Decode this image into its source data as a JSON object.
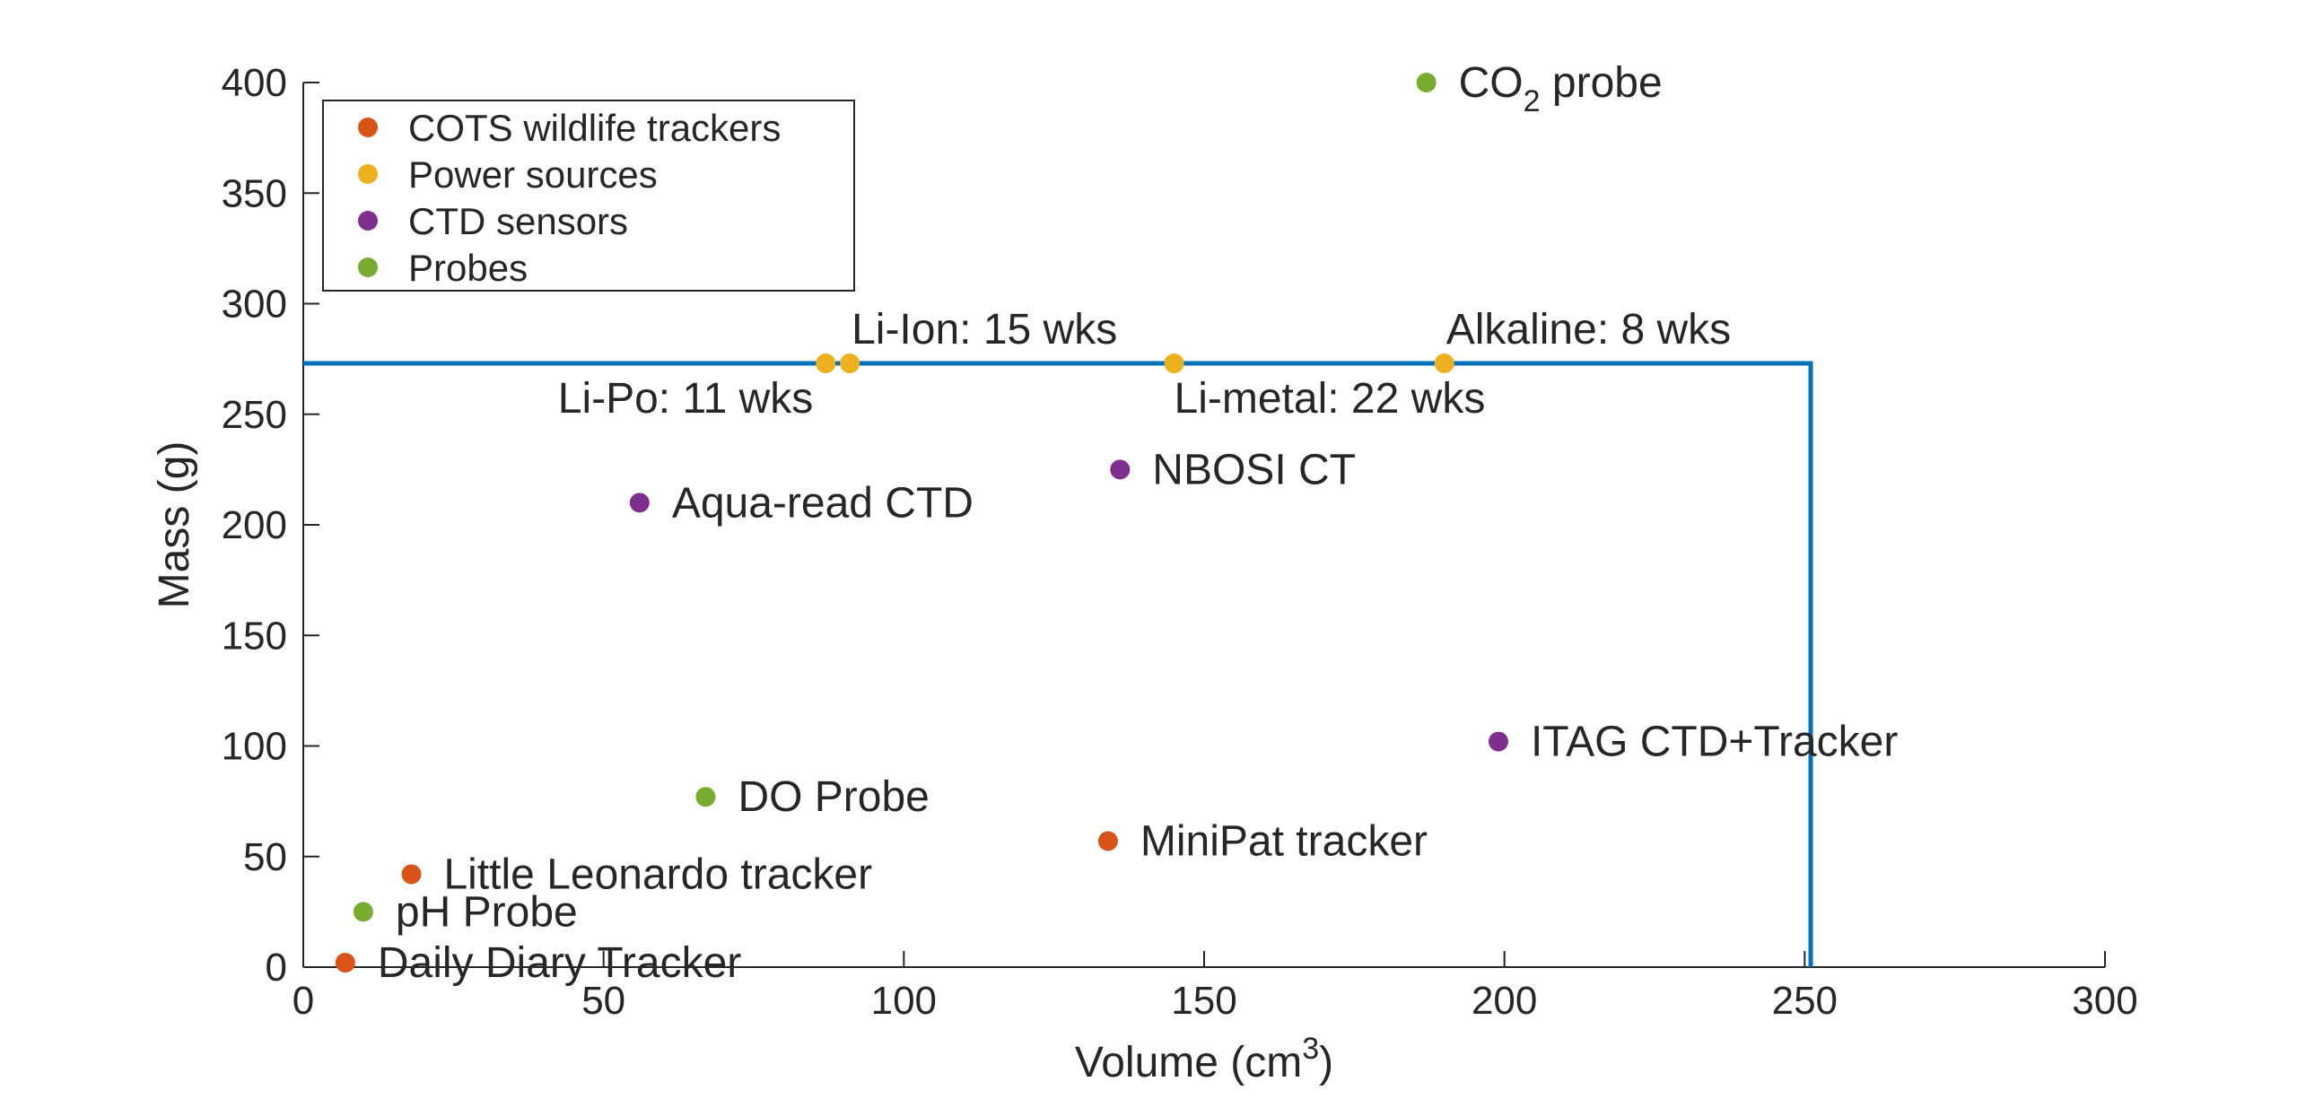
{
  "chart_data": {
    "type": "scatter",
    "xlabel": "Volume (cm",
    "xlabel_sup": "3",
    "xlabel_close": ")",
    "ylabel": "Mass (g)",
    "xlim": [
      0,
      300
    ],
    "ylim": [
      0,
      400
    ],
    "xticks": [
      0,
      50,
      100,
      150,
      200,
      250,
      300
    ],
    "yticks": [
      0,
      50,
      100,
      150,
      200,
      250,
      300,
      350,
      400
    ],
    "grid": false,
    "legend_position": "top-left",
    "colors": {
      "cots": "#D95319",
      "power": "#EDB120",
      "ctd": "#7E2F8E",
      "probes": "#77AC30",
      "limit_line": "#0072BD",
      "axis": "#262626"
    },
    "limit_line": {
      "x": 251,
      "y": 273
    },
    "series": [
      {
        "name": "COTS wildlife trackers",
        "color_key": "cots",
        "points": [
          {
            "x": 18,
            "y": 42,
            "label": "Little Leonardo tracker",
            "anchor": "right"
          },
          {
            "x": 7,
            "y": 2,
            "label": "Daily Diary Tracker",
            "anchor": "right"
          },
          {
            "x": 134,
            "y": 57,
            "label": "MiniPat tracker",
            "anchor": "right"
          }
        ]
      },
      {
        "name": "Power sources",
        "color_key": "power",
        "points": [
          {
            "x": 87,
            "y": 273,
            "label": "Li-Po: 11 wks",
            "anchor": "below-left"
          },
          {
            "x": 91,
            "y": 273,
            "label": "Li-Ion: 15 wks",
            "anchor": "above-right"
          },
          {
            "x": 145,
            "y": 273,
            "label": "Li-metal: 22 wks",
            "anchor": "below-right"
          },
          {
            "x": 190,
            "y": 273,
            "label": "Alkaline: 8 wks",
            "anchor": "above-right"
          }
        ]
      },
      {
        "name": "CTD sensors",
        "color_key": "ctd",
        "points": [
          {
            "x": 56,
            "y": 210,
            "label": "Aqua-read CTD",
            "anchor": "right"
          },
          {
            "x": 136,
            "y": 225,
            "label": "NBOSI CT",
            "anchor": "right"
          },
          {
            "x": 199,
            "y": 102,
            "label": "ITAG CTD+Tracker",
            "anchor": "right"
          }
        ]
      },
      {
        "name": "Probes",
        "color_key": "probes",
        "points": [
          {
            "x": 187,
            "y": 400,
            "label": "CO",
            "label_sub": "2",
            "label_tail": " probe",
            "anchor": "right"
          },
          {
            "x": 67,
            "y": 77,
            "label": "DO Probe",
            "anchor": "right"
          },
          {
            "x": 10,
            "y": 25,
            "label": "pH Probe",
            "anchor": "right"
          }
        ]
      }
    ]
  }
}
